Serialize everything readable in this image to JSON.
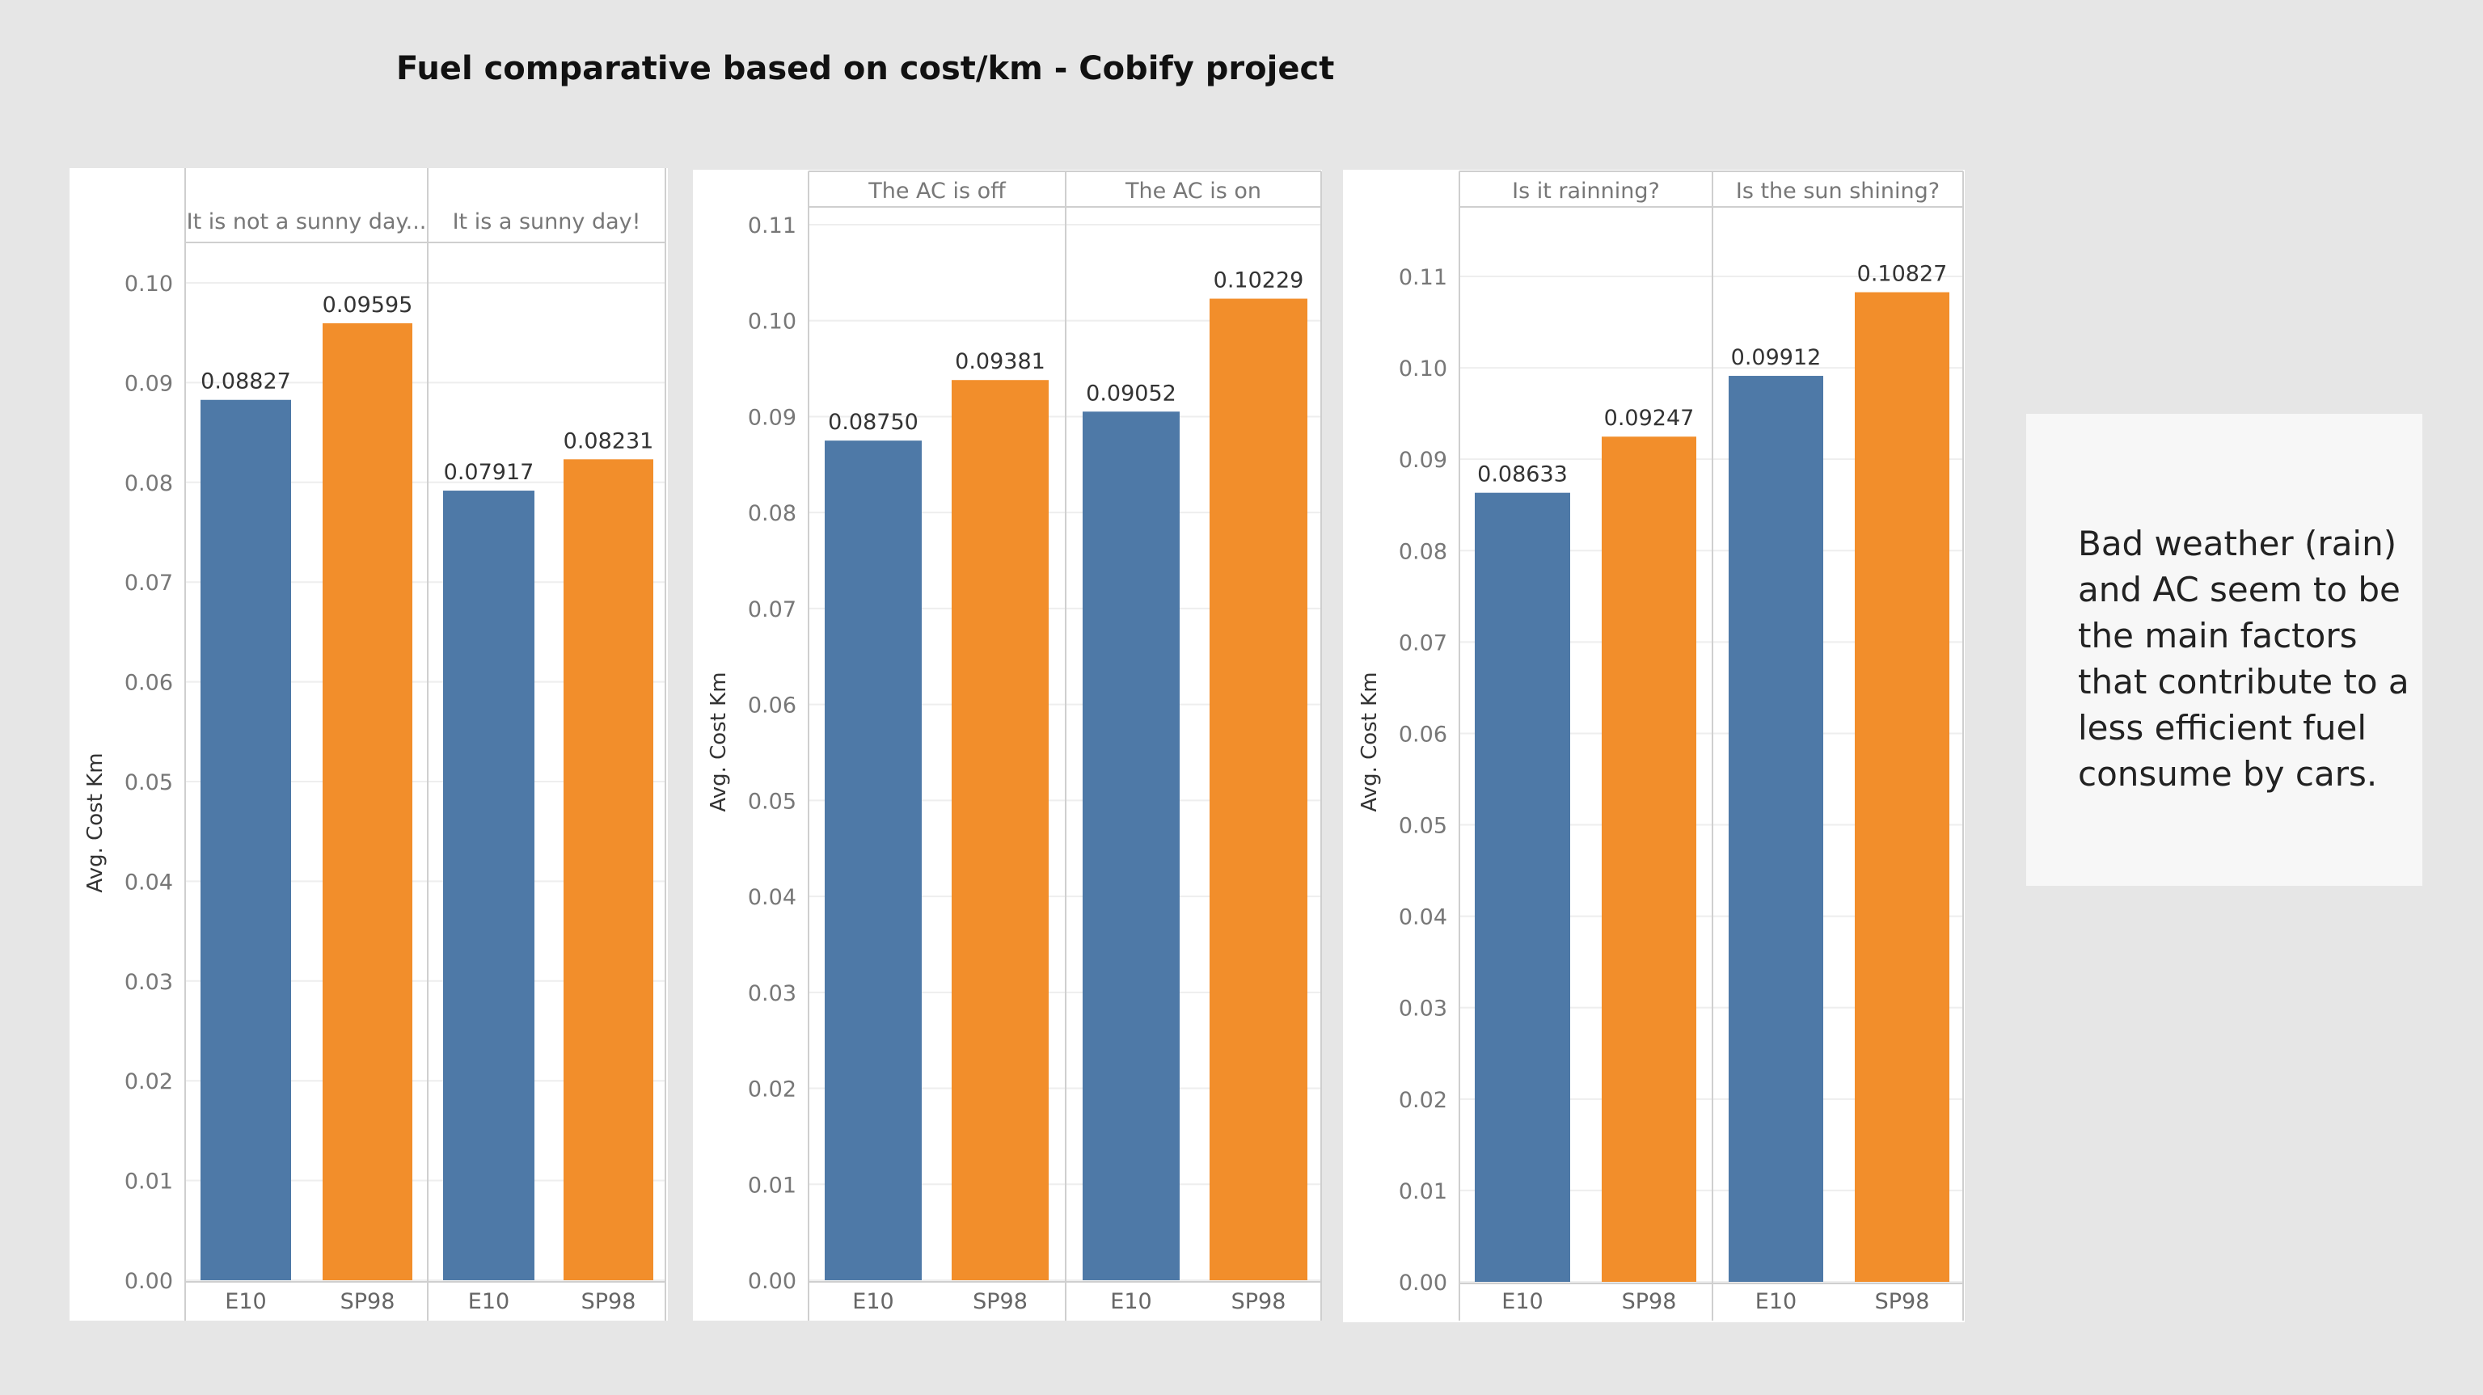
{
  "title": "Fuel comparative based on cost/km - Cobify project",
  "note": "Bad weather (rain) and AC seem to be the main factors that contribute to a less efficient fuel consume by cars.",
  "colors": {
    "E10": "#4e79a7",
    "SP98": "#f28e2b"
  },
  "chart_data": [
    {
      "type": "bar",
      "ylabel": "Avg. Cost Km",
      "ylim": [
        0,
        0.1
      ],
      "yticks": [
        "0.00",
        "0.01",
        "0.02",
        "0.03",
        "0.04",
        "0.05",
        "0.06",
        "0.07",
        "0.08",
        "0.09",
        "0.10"
      ],
      "groups": [
        {
          "header": "It is not a sunny day...",
          "categories": [
            "E10",
            "SP98"
          ],
          "values": [
            0.08827,
            0.09595
          ],
          "labels": [
            "0.08827",
            "0.09595"
          ]
        },
        {
          "header": "It is a sunny day!",
          "categories": [
            "E10",
            "SP98"
          ],
          "values": [
            0.07917,
            0.08231
          ],
          "labels": [
            "0.07917",
            "0.08231"
          ]
        }
      ]
    },
    {
      "type": "bar",
      "ylabel": "Avg. Cost Km",
      "ylim": [
        0,
        0.11
      ],
      "yticks": [
        "0.00",
        "0.01",
        "0.02",
        "0.03",
        "0.04",
        "0.05",
        "0.06",
        "0.07",
        "0.08",
        "0.09",
        "0.10",
        "0.11"
      ],
      "groups": [
        {
          "header": "The AC is off",
          "categories": [
            "E10",
            "SP98"
          ],
          "values": [
            0.0875,
            0.09381
          ],
          "labels": [
            "0.08750",
            "0.09381"
          ]
        },
        {
          "header": "The AC is on",
          "categories": [
            "E10",
            "SP98"
          ],
          "values": [
            0.09052,
            0.10229
          ],
          "labels": [
            "0.09052",
            "0.10229"
          ]
        }
      ]
    },
    {
      "type": "bar",
      "ylabel": "Avg. Cost Km",
      "ylim": [
        0,
        0.11
      ],
      "yticks": [
        "0.00",
        "0.01",
        "0.02",
        "0.03",
        "0.04",
        "0.05",
        "0.06",
        "0.07",
        "0.08",
        "0.09",
        "0.10",
        "0.11"
      ],
      "groups": [
        {
          "header": "Is it rainning?",
          "categories": [
            "E10",
            "SP98"
          ],
          "values": [
            0.08633,
            0.09247
          ],
          "labels": [
            "0.08633",
            "0.09247"
          ]
        },
        {
          "header": "Is the sun shining?",
          "categories": [
            "E10",
            "SP98"
          ],
          "values": [
            0.09912,
            0.10827
          ],
          "labels": [
            "0.09912",
            "0.10827"
          ]
        }
      ]
    }
  ]
}
